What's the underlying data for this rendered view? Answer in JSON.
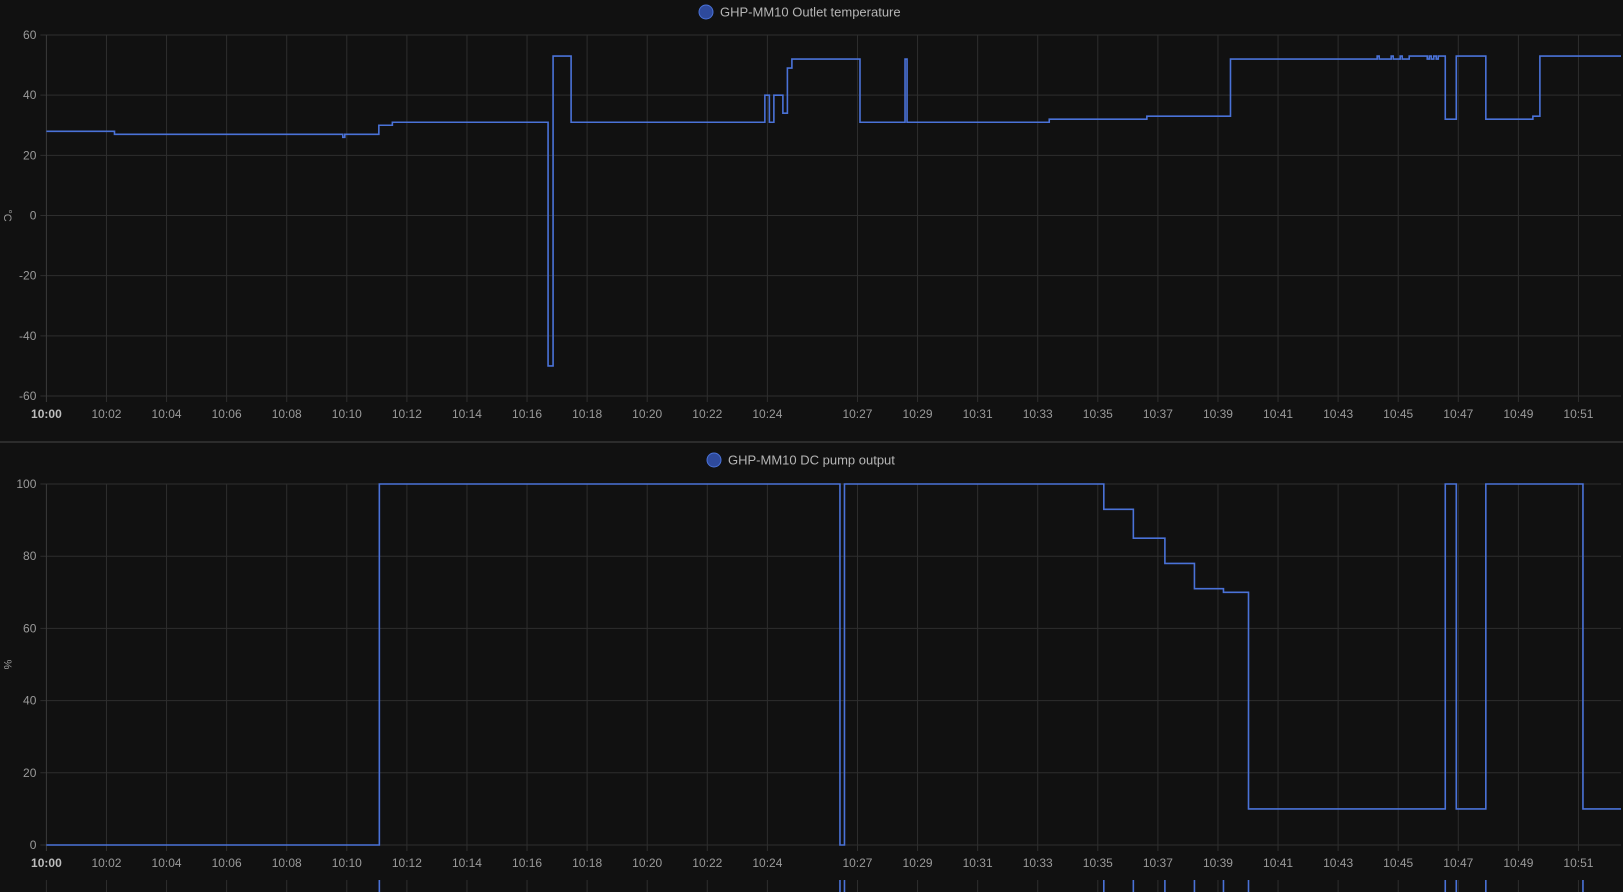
{
  "chart_data": [
    {
      "type": "line",
      "step": true,
      "legend": {
        "label": "GHP-MM10 Outlet temperature",
        "position": "top-center"
      },
      "ylabel": "°C",
      "ylim": [
        -60,
        60
      ],
      "yticks": [
        "60",
        "40",
        "20",
        "0",
        "-20",
        "-40",
        "-60"
      ],
      "xlim": [
        "10:00:00",
        "10:52:25"
      ],
      "xticks": [
        "10:00",
        "10:02",
        "10:04",
        "10:06",
        "10:08",
        "10:10",
        "10:12",
        "10:14",
        "10:16",
        "10:18",
        "10:20",
        "10:22",
        "10:24",
        "10:27",
        "10:29",
        "10:31",
        "10:33",
        "10:35",
        "10:37",
        "10:39",
        "10:41",
        "10:43",
        "10:45",
        "10:47",
        "10:49",
        "10:51"
      ],
      "grid": true,
      "color": "#4a72d8",
      "series": [
        {
          "points": [
            [
              "10:00:00",
              28
            ],
            [
              "10:02:16",
              27
            ],
            [
              "10:09:52",
              26
            ],
            [
              "10:09:56",
              27
            ],
            [
              "10:11:04",
              30
            ],
            [
              "10:11:31",
              31
            ],
            [
              "10:16:42",
              -50
            ],
            [
              "10:16:52",
              53
            ],
            [
              "10:17:28",
              31
            ],
            [
              "10:23:55",
              40
            ],
            [
              "10:24:04",
              31
            ],
            [
              "10:24:13",
              40
            ],
            [
              "10:24:31",
              34
            ],
            [
              "10:24:40",
              49
            ],
            [
              "10:24:49",
              52
            ],
            [
              "10:27:05",
              31
            ],
            [
              "10:28:35",
              52
            ],
            [
              "10:28:39",
              31
            ],
            [
              "10:33:23",
              32
            ],
            [
              "10:36:38",
              33
            ],
            [
              "10:39:25",
              52
            ],
            [
              "10:44:18",
              53
            ],
            [
              "10:44:22",
              52
            ],
            [
              "10:44:46",
              53
            ],
            [
              "10:44:50",
              52
            ],
            [
              "10:45:04",
              53
            ],
            [
              "10:45:08",
              52
            ],
            [
              "10:45:22",
              53
            ],
            [
              "10:45:58",
              52
            ],
            [
              "10:46:02",
              53
            ],
            [
              "10:46:06",
              52
            ],
            [
              "10:46:11",
              53
            ],
            [
              "10:46:16",
              52
            ],
            [
              "10:46:20",
              53
            ],
            [
              "10:46:34",
              32
            ],
            [
              "10:46:56",
              53
            ],
            [
              "10:47:55",
              32
            ],
            [
              "10:49:29",
              33
            ],
            [
              "10:49:43",
              53
            ]
          ]
        }
      ]
    },
    {
      "type": "line",
      "step": true,
      "legend": {
        "label": "GHP-MM10 DC pump output",
        "position": "top-center"
      },
      "ylabel": "%",
      "ylim": [
        0,
        100
      ],
      "yticks": [
        "100",
        "80",
        "60",
        "40",
        "20",
        "0"
      ],
      "xlim": [
        "10:00:00",
        "10:52:25"
      ],
      "xticks": [
        "10:00",
        "10:02",
        "10:04",
        "10:06",
        "10:08",
        "10:10",
        "10:12",
        "10:14",
        "10:16",
        "10:18",
        "10:20",
        "10:22",
        "10:24",
        "10:27",
        "10:29",
        "10:31",
        "10:33",
        "10:35",
        "10:37",
        "10:39",
        "10:41",
        "10:43",
        "10:45",
        "10:47",
        "10:49",
        "10:51"
      ],
      "grid": true,
      "color": "#4a72d8",
      "series": [
        {
          "points": [
            [
              "10:00:00",
              0
            ],
            [
              "10:11:05",
              100
            ],
            [
              "10:26:25",
              0
            ],
            [
              "10:26:34",
              100
            ],
            [
              "10:35:12",
              93
            ],
            [
              "10:36:11",
              85
            ],
            [
              "10:37:14",
              78
            ],
            [
              "10:38:13",
              71
            ],
            [
              "10:39:11",
              70
            ],
            [
              "10:40:01",
              10
            ],
            [
              "10:46:34",
              100
            ],
            [
              "10:46:56",
              10
            ],
            [
              "10:47:55",
              100
            ],
            [
              "10:51:09",
              10
            ]
          ]
        }
      ]
    }
  ]
}
